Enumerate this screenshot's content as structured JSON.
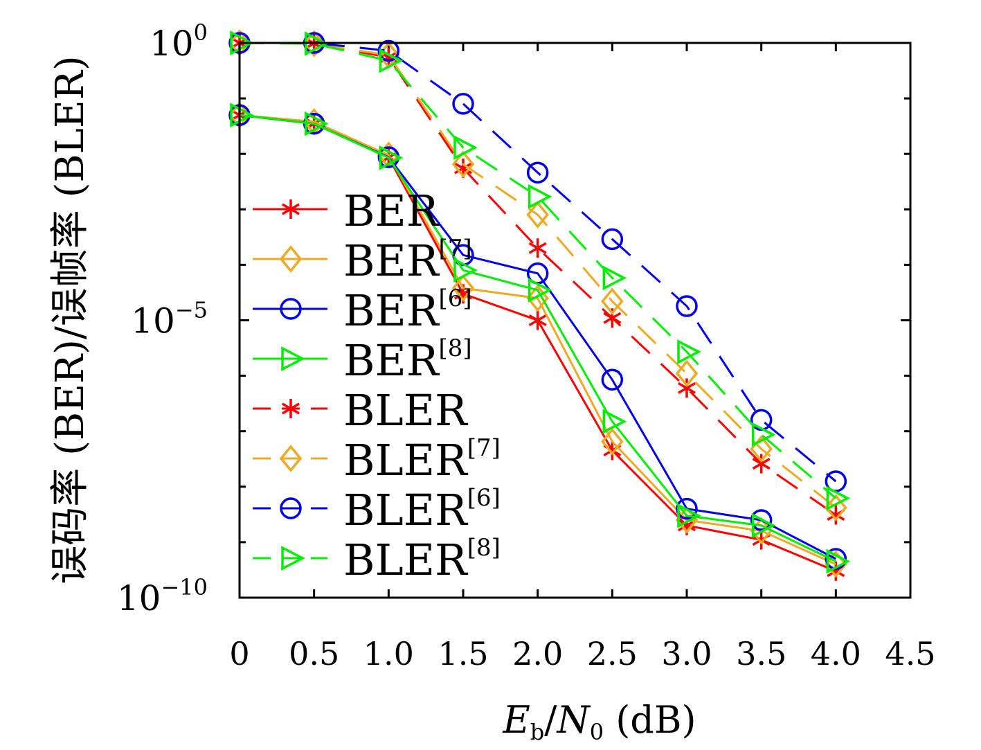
{
  "chart_data": {
    "type": "line",
    "xlabel": "E_b/N_0 (dB)",
    "xlabel_parts": {
      "E": "E",
      "E_sub": "b",
      "slash": "/",
      "N": "N",
      "N_sub": "0",
      "unit": "(dB)"
    },
    "ylabel": "误码率 (BER)/误帧率 (BLER)",
    "xlim": [
      0,
      4.5
    ],
    "ylim": [
      1e-10,
      1
    ],
    "yscale": "log",
    "x_ticks": [
      "0",
      "0.5",
      "1.0",
      "1.5",
      "2.0",
      "2.5",
      "3.0",
      "3.5",
      "4.0",
      "4.5"
    ],
    "y_ticks": [
      {
        "value": 1,
        "base": "10",
        "exp": "0"
      },
      {
        "value": 1e-05,
        "base": "10",
        "exp": "−5"
      },
      {
        "value": 1e-10,
        "base": "10",
        "exp": "−10"
      }
    ],
    "grid": false,
    "legend_position": "left",
    "series": [
      {
        "name": "BER",
        "ref": "",
        "color": "#ff0000",
        "marker": "asterisk",
        "dashed": false,
        "x": [
          0,
          0.5,
          1.0,
          1.5,
          2.0,
          2.5,
          3.0,
          3.5,
          4.0
        ],
        "y": [
          0.05,
          0.035,
          0.0086,
          3e-05,
          1e-05,
          4.5e-08,
          2e-09,
          1.1e-09,
          3e-10
        ]
      },
      {
        "name": "BER",
        "ref": "[7]",
        "color": "#eeaa22",
        "marker": "diamond",
        "dashed": false,
        "x": [
          0,
          0.5,
          1.0,
          1.5,
          2.0,
          2.5,
          3.0,
          3.5,
          4.0
        ],
        "y": [
          0.05,
          0.038,
          0.0095,
          3.8e-05,
          2.5e-05,
          6.5e-08,
          2.5e-09,
          1.6e-09,
          4e-10
        ]
      },
      {
        "name": "BER",
        "ref": "[6]",
        "color": "#0000ee",
        "marker": "circle",
        "dashed": false,
        "x": [
          0,
          0.5,
          1.0,
          1.5,
          2.0,
          2.5,
          3.0,
          3.5,
          4.0
        ],
        "y": [
          0.05,
          0.035,
          0.0087,
          0.00015,
          7e-05,
          8.5e-07,
          4e-09,
          2.5e-09,
          5e-10
        ]
      },
      {
        "name": "BER",
        "ref": "[8]",
        "color": "#00ee00",
        "marker": "triangle-right",
        "dashed": false,
        "x": [
          0,
          0.5,
          1.0,
          1.5,
          2.0,
          2.5,
          3.0,
          3.5,
          4.0
        ],
        "y": [
          0.05,
          0.035,
          0.0085,
          8e-05,
          3.5e-05,
          1.5e-07,
          3e-09,
          2e-09,
          4.5e-10
        ]
      },
      {
        "name": "BLER",
        "ref": "",
        "color": "#ff0000",
        "marker": "asterisk",
        "dashed": true,
        "x": [
          0,
          0.5,
          1.0,
          1.5,
          2.0,
          2.5,
          3.0,
          3.5,
          4.0
        ],
        "y": [
          1.0,
          0.98,
          0.55,
          0.0055,
          0.0002,
          1.1e-05,
          6e-07,
          2.6e-08,
          3.1e-09
        ]
      },
      {
        "name": "BLER",
        "ref": "[7]",
        "color": "#eeaa22",
        "marker": "diamond",
        "dashed": true,
        "x": [
          0,
          0.5,
          1.0,
          1.5,
          2.0,
          2.5,
          3.0,
          3.5,
          4.0
        ],
        "y": [
          1.0,
          0.97,
          0.6,
          0.0065,
          0.0008,
          2.2e-05,
          1.1e-06,
          4.8e-08,
          4.2e-09
        ]
      },
      {
        "name": "BLER",
        "ref": "[6]",
        "color": "#0000ee",
        "marker": "circle",
        "dashed": true,
        "x": [
          0,
          0.5,
          1.0,
          1.5,
          2.0,
          2.5,
          3.0,
          3.5,
          4.0
        ],
        "y": [
          1.0,
          1.0,
          0.72,
          0.08,
          0.0046,
          0.00029,
          1.8e-05,
          1.6e-07,
          1.25e-08
        ]
      },
      {
        "name": "BLER",
        "ref": "[8]",
        "color": "#00ee00",
        "marker": "triangle-right",
        "dashed": true,
        "x": [
          0,
          0.5,
          1.0,
          1.5,
          2.0,
          2.5,
          3.0,
          3.5,
          4.0
        ],
        "y": [
          1.0,
          0.97,
          0.48,
          0.013,
          0.0017,
          5.8e-05,
          2.7e-06,
          8.7e-08,
          6.2e-09
        ]
      }
    ]
  }
}
